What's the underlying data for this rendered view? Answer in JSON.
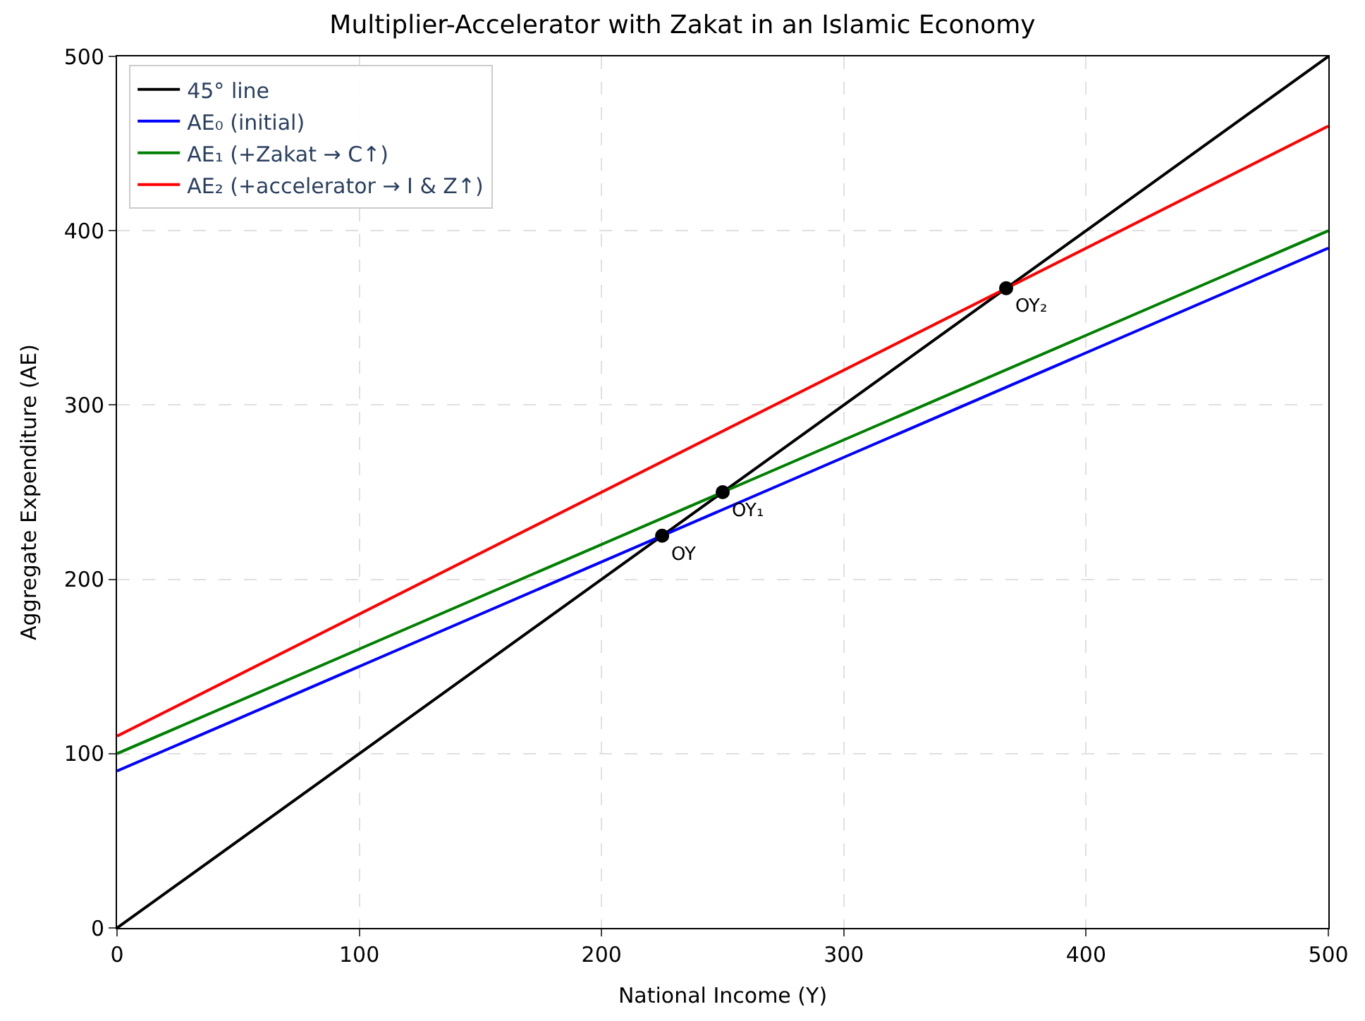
{
  "chart_data": {
    "type": "line",
    "title": "Multiplier-Accelerator with Zakat in an Islamic Economy",
    "xlabel": "National Income (Y)",
    "ylabel": "Aggregate Expenditure (AE)",
    "xlim": [
      0,
      500
    ],
    "ylim": [
      0,
      500
    ],
    "xticks": [
      0,
      100,
      200,
      300,
      400,
      500
    ],
    "yticks": [
      0,
      100,
      200,
      300,
      400,
      500
    ],
    "grid": true,
    "legend": "top left",
    "series": [
      {
        "name": "45° line",
        "color": "#000000",
        "x": [
          0,
          500
        ],
        "values": [
          0,
          500
        ]
      },
      {
        "name": "AE₀ (initial)",
        "color": "#0000ff",
        "x": [
          0,
          500
        ],
        "values": [
          90,
          390
        ]
      },
      {
        "name": "AE₁ (+Zakat → C↑)",
        "color": "#008000",
        "x": [
          0,
          500
        ],
        "values": [
          100,
          400
        ]
      },
      {
        "name": "AE₂ (+accelerator → I & Z↑)",
        "color": "#ff0000",
        "x": [
          0,
          500
        ],
        "values": [
          110,
          460
        ]
      },
      {
        "color": "#000000",
        "type": "scatter",
        "marker": "circle",
        "x": [
          225,
          250,
          367
        ],
        "values": [
          225,
          250,
          367
        ]
      }
    ],
    "annotations": [
      {
        "text": "OY",
        "x": 225,
        "y": 225
      },
      {
        "text": "OY₁",
        "x": 250,
        "y": 250
      },
      {
        "text": "OY₂",
        "x": 367,
        "y": 367
      }
    ]
  }
}
